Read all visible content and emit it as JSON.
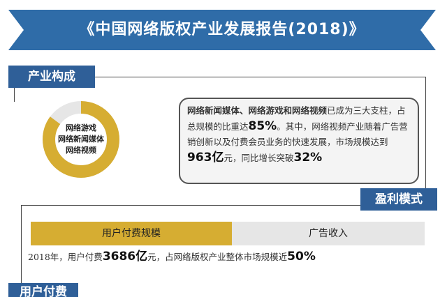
{
  "banner": {
    "title": "《中国网络版权产业发展报告(2018)》"
  },
  "industry": {
    "tag": "产业构成",
    "donut_labels": [
      "网络游戏",
      "网络新闻媒体",
      "网络视频"
    ],
    "donut_share": 0.85,
    "colors": {
      "gold": "#d6ad32",
      "gray": "#e6e6e6",
      "blue": "#2f5f98"
    },
    "callout": {
      "lead": "网络新闻媒体、网络游戏和网络视频",
      "t1": "已成为三大支柱，占总规模的比重达",
      "v1": "85%",
      "t2": "。其中，网络视频产业随着广告营销创新以及付费会员业务的快速发展，市场规模达到",
      "v2": "963亿",
      "t3": "元，同比增长突破",
      "v3": "32%"
    }
  },
  "profit": {
    "tag": "盈利模式",
    "bar_left": "用户付费规模",
    "bar_right": "广告收入",
    "t1": "2018年，用户付费",
    "v1": "3686亿",
    "t2": "元，占网络版权产业整体市场规模近",
    "v2": "50%"
  },
  "user_pay": {
    "tag": "用户付费"
  }
}
